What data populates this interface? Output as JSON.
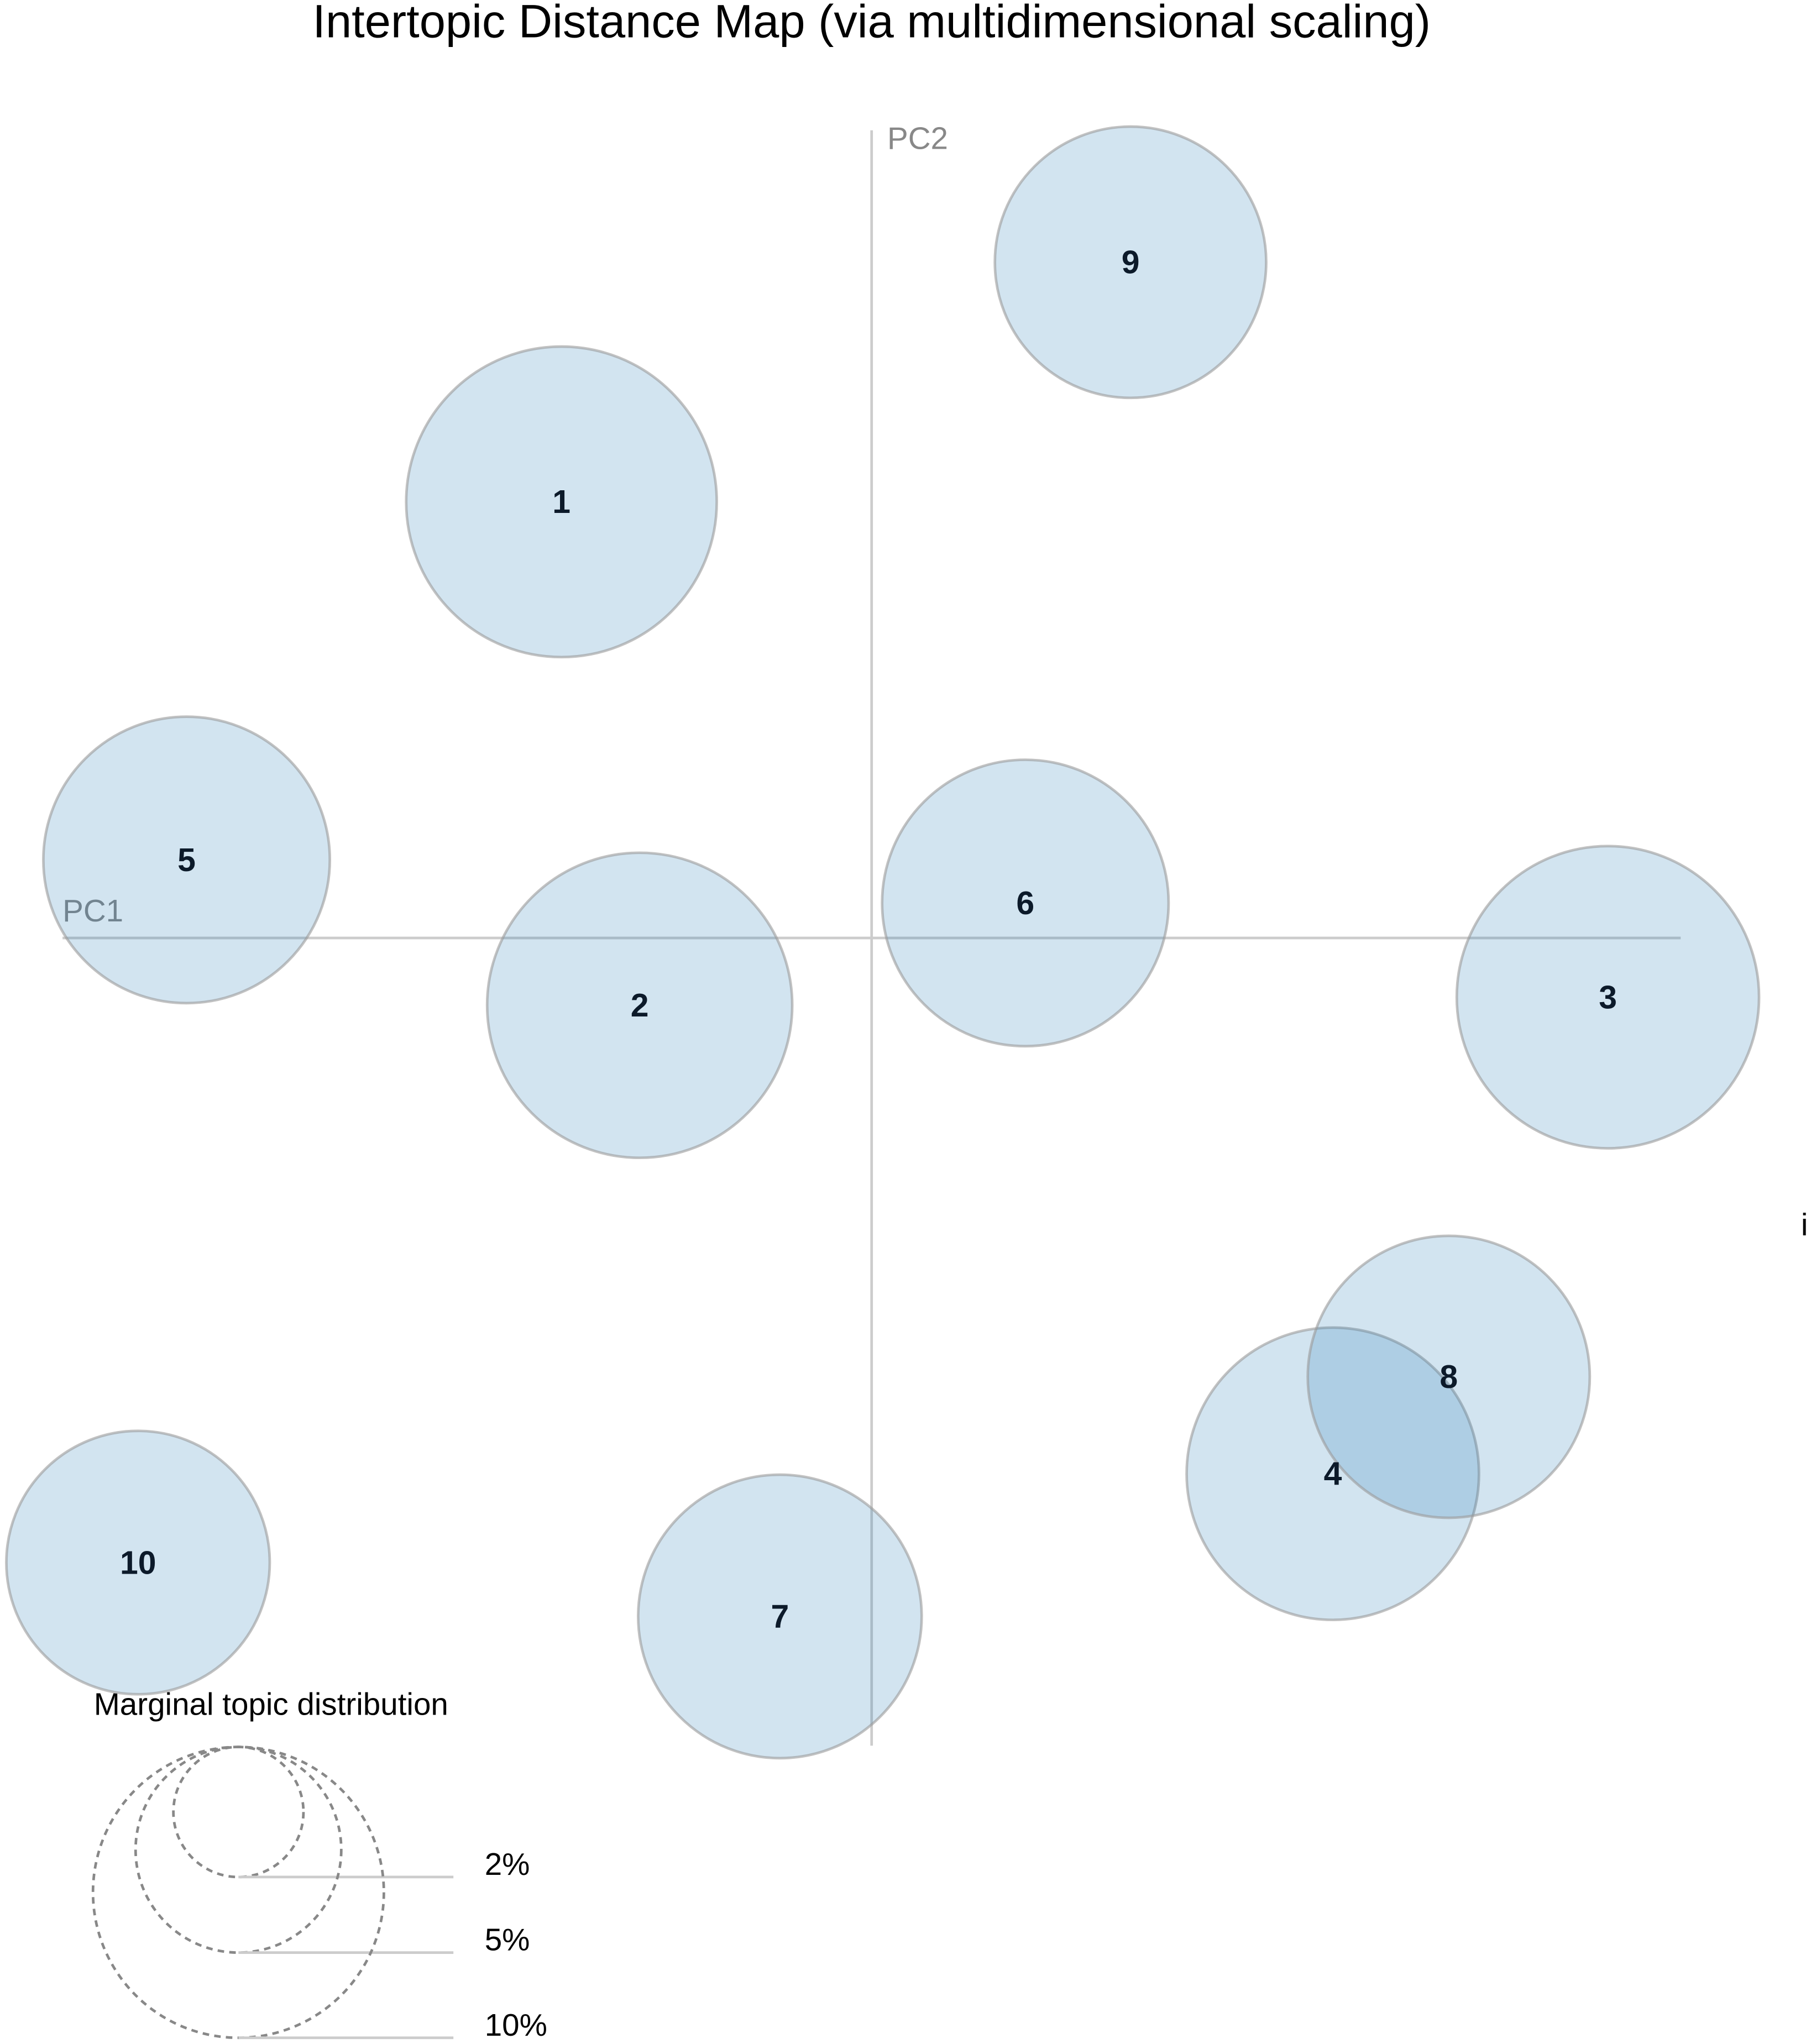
{
  "chart_data": {
    "type": "bubble",
    "title": "Intertopic Distance Map (via multidimensional scaling)",
    "x_label": "PC1",
    "y_label": "PC2",
    "labels": [
      "1",
      "2",
      "3",
      "4",
      "5",
      "6",
      "7",
      "8",
      "9",
      "10"
    ],
    "x": [
      -0.115,
      -0.086,
      0.273,
      0.171,
      -0.254,
      0.057,
      -0.034,
      0.214,
      0.096,
      -0.272
    ],
    "y": [
      0.162,
      -0.025,
      -0.022,
      -0.199,
      0.029,
      0.013,
      -0.252,
      -0.163,
      0.251,
      -0.232
    ],
    "sizes": [
      11.4,
      11.0,
      10.8,
      10.1,
      9.7,
      9.7,
      9.5,
      9.4,
      8.7,
      8.2
    ],
    "xlim": [
      -0.3,
      0.3
    ],
    "ylim": [
      -0.3,
      0.3
    ],
    "color": "#1f77b4",
    "size_legend": {
      "title": "Marginal topic distribution",
      "ticks": [
        {
          "value": 2,
          "label": "2%"
        },
        {
          "value": 5,
          "label": "5%"
        },
        {
          "value": 10,
          "label": "10%"
        }
      ]
    },
    "annotation": "i"
  }
}
